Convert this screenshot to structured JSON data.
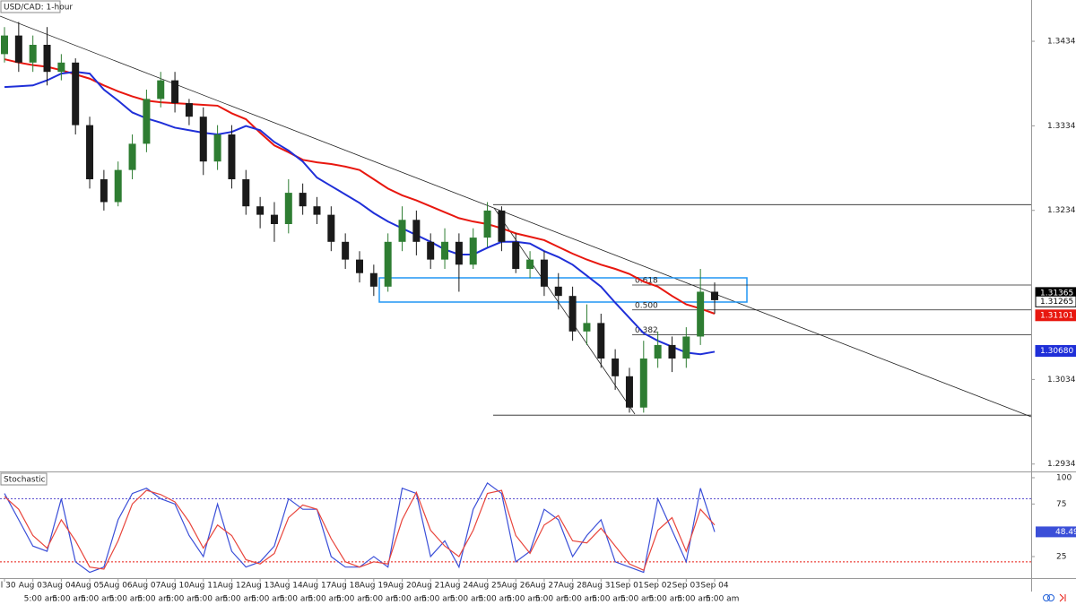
{
  "chart_data": [
    {
      "type": "candlestick",
      "title": "USD/CAD: 1-hour",
      "categories": [
        "Jul 30",
        null,
        "Aug 03",
        null,
        "Aug 04",
        null,
        "Aug 05",
        null,
        "Aug 06",
        null,
        "Aug 07",
        null,
        "Aug 10",
        null,
        "Aug 11",
        null,
        "Aug 12",
        null,
        "Aug 13",
        null,
        "Aug 14",
        null,
        "Aug 17",
        null,
        "Aug 18",
        null,
        "Aug 19",
        null,
        "Aug 20",
        null,
        "Aug 21",
        null,
        "Aug 24",
        null,
        "Aug 25",
        null,
        "Aug 26",
        null,
        "Aug 27",
        null,
        "Aug 28",
        null,
        "Aug 31",
        null,
        "Sep 01",
        null,
        "Sep 02",
        null,
        "Sep 03",
        null,
        "Sep 04"
      ],
      "sublabels": [
        null,
        null,
        "5:00 am",
        null,
        "5:00 am",
        null,
        "5:00 am",
        null,
        "5:00 am",
        null,
        "5:00 am",
        null,
        "5:00 am",
        null,
        "5:00 am",
        null,
        "5:00 am",
        null,
        "5:00 am",
        null,
        "5:00 am",
        null,
        "5:00 am",
        null,
        "5:00 am",
        null,
        "5:00 am",
        null,
        "5:00 am",
        null,
        "5:00 am",
        null,
        "5:00 am",
        null,
        "5:00 am",
        null,
        "5:00 am",
        null,
        "5:00 am",
        null,
        "5:00 am",
        null,
        "5:00 am",
        null,
        "5:00 am",
        null,
        "5:00 am",
        null,
        "5:00 am",
        null,
        "5:00 am"
      ],
      "open": [
        1.3419,
        1.3441,
        1.3409,
        1.343,
        1.3398,
        1.3409,
        1.3335,
        1.3271,
        1.3244,
        1.3282,
        1.3313,
        1.3366,
        1.3388,
        1.3361,
        1.3345,
        1.3292,
        1.3324,
        1.3271,
        1.3239,
        1.3229,
        1.3218,
        1.3255,
        1.3239,
        1.3229,
        1.3197,
        1.3176,
        1.316,
        1.3144,
        1.3197,
        1.3223,
        1.3197,
        1.3176,
        1.3197,
        1.317,
        1.3202,
        1.3234,
        1.3197,
        1.3165,
        1.3176,
        1.3144,
        1.3133,
        1.3091,
        1.3101,
        1.3059,
        1.3038,
        1.3001,
        1.3059,
        1.3075,
        1.3059,
        1.3085,
        1.3138
      ],
      "high": [
        1.3451,
        1.3457,
        1.3441,
        1.3451,
        1.3419,
        1.3414,
        1.3345,
        1.3282,
        1.3292,
        1.3324,
        1.3377,
        1.3398,
        1.3398,
        1.3366,
        1.3356,
        1.3335,
        1.3335,
        1.3282,
        1.325,
        1.3244,
        1.3271,
        1.3266,
        1.325,
        1.3239,
        1.3207,
        1.3186,
        1.317,
        1.3207,
        1.3239,
        1.3234,
        1.3207,
        1.3213,
        1.3207,
        1.3213,
        1.3244,
        1.3239,
        1.3207,
        1.3186,
        1.3186,
        1.316,
        1.3144,
        1.3123,
        1.3112,
        1.307,
        1.3048,
        1.308,
        1.3091,
        1.3085,
        1.3096,
        1.3165,
        1.3149
      ],
      "low": [
        1.3409,
        1.3398,
        1.3398,
        1.3382,
        1.3388,
        1.3324,
        1.326,
        1.3234,
        1.3239,
        1.3271,
        1.3303,
        1.3356,
        1.335,
        1.3335,
        1.3276,
        1.3282,
        1.326,
        1.3229,
        1.3213,
        1.3197,
        1.3207,
        1.3229,
        1.3218,
        1.3186,
        1.3165,
        1.3149,
        1.3133,
        1.3138,
        1.3186,
        1.3181,
        1.3165,
        1.3165,
        1.3138,
        1.3165,
        1.3191,
        1.3186,
        1.316,
        1.3154,
        1.3133,
        1.3117,
        1.308,
        1.3075,
        1.3048,
        1.3022,
        1.2995,
        1.2995,
        1.3048,
        1.3043,
        1.3048,
        1.3075,
        1.3112
      ],
      "close": [
        1.3441,
        1.3409,
        1.343,
        1.3398,
        1.3409,
        1.3335,
        1.3271,
        1.3244,
        1.3282,
        1.3313,
        1.3366,
        1.3388,
        1.3361,
        1.3345,
        1.3292,
        1.3324,
        1.3271,
        1.3239,
        1.3229,
        1.3218,
        1.3255,
        1.3239,
        1.3229,
        1.3197,
        1.3176,
        1.316,
        1.3144,
        1.3197,
        1.3223,
        1.3197,
        1.3176,
        1.3197,
        1.317,
        1.3202,
        1.3234,
        1.3197,
        1.3165,
        1.3176,
        1.3144,
        1.3133,
        1.3091,
        1.3101,
        1.3059,
        1.3038,
        1.3001,
        1.3059,
        1.3075,
        1.3059,
        1.3085,
        1.3138,
        1.3128
      ],
      "up_color": "#2e7d32",
      "down_color": "#1a1a1a",
      "overlays": [
        {
          "color": "#e8170f",
          "values": [
            1.3413,
            1.3409,
            1.3406,
            1.3404,
            1.34,
            1.3395,
            1.339,
            1.3382,
            1.3375,
            1.3369,
            1.3364,
            1.3362,
            1.3361,
            1.336,
            1.3359,
            1.3358,
            1.3349,
            1.3342,
            1.3326,
            1.3311,
            1.3303,
            1.3294,
            1.3291,
            1.3289,
            1.3286,
            1.3282,
            1.3271,
            1.326,
            1.3252,
            1.3246,
            1.3239,
            1.3232,
            1.3225,
            1.3221,
            1.3218,
            1.3213,
            1.3207,
            1.3203,
            1.3199,
            1.3191,
            1.3183,
            1.3176,
            1.317,
            1.3165,
            1.3159,
            1.315,
            1.3144,
            1.3133,
            1.3123,
            1.3118,
            1.3112
          ]
        },
        {
          "color": "#1f2fd8",
          "values": [
            1.338,
            1.3381,
            1.3382,
            1.3388,
            1.3396,
            1.3398,
            1.3396,
            1.3377,
            1.3364,
            1.335,
            1.3343,
            1.3338,
            1.3332,
            1.3329,
            1.3326,
            1.3324,
            1.3327,
            1.3334,
            1.3329,
            1.3315,
            1.3305,
            1.3292,
            1.3273,
            1.3263,
            1.3253,
            1.3243,
            1.3231,
            1.3221,
            1.3213,
            1.3205,
            1.3197,
            1.3188,
            1.3182,
            1.3182,
            1.319,
            1.3197,
            1.3197,
            1.3195,
            1.3186,
            1.3179,
            1.317,
            1.3157,
            1.3144,
            1.3125,
            1.3107,
            1.3089,
            1.308,
            1.3073,
            1.3066,
            1.3064,
            1.3067
          ]
        }
      ],
      "fib": {
        "high": 1.3241,
        "low": 1.2992,
        "levels": [
          0.618,
          {
            "value": 0.5,
            "label": "0.500"
          },
          0.382
        ]
      },
      "price_markers": [
        {
          "value": 1.31365,
          "color": "#000000"
        },
        {
          "value": 1.31265,
          "color": "#ffffff"
        },
        {
          "value": 1.31101,
          "color": "#e8170f"
        },
        {
          "value": {
            "value": 1.3068,
            "label": "1.30680"
          },
          "color": "#1f2fd8"
        }
      ],
      "ylim": [
        1.29265,
        1.3483
      ],
      "yticks": [
        1.29342,
        1.30342,
        1.32342,
        1.33342,
        1.34342
      ]
    },
    {
      "type": "line",
      "title": "Stochastic",
      "series": [
        {
          "color": "#3b4fd8",
          "values": [
            85,
            60,
            35,
            30,
            80,
            20,
            10,
            15,
            60,
            85,
            90,
            80,
            75,
            45,
            25,
            75,
            30,
            15,
            20,
            35,
            80,
            70,
            70,
            25,
            15,
            15,
            25,
            15,
            90,
            85,
            25,
            40,
            15,
            70,
            95,
            85,
            20,
            30,
            70,
            60,
            25,
            45,
            60,
            20,
            15,
            10,
            80,
            50,
            20,
            90,
            48.49
          ]
        },
        {
          "color": "#e8453c",
          "values": [
            82,
            70,
            45,
            33,
            60,
            40,
            15,
            13,
            40,
            75,
            88,
            84,
            77,
            58,
            33,
            55,
            45,
            22,
            18,
            28,
            62,
            74,
            70,
            42,
            20,
            15,
            20,
            18,
            60,
            86,
            50,
            35,
            25,
            50,
            85,
            88,
            45,
            28,
            55,
            64,
            40,
            38,
            52,
            35,
            18,
            12,
            50,
            62,
            30,
            70,
            55
          ]
        }
      ],
      "levels": [
        {
          "value": 80,
          "color": "#5a4fcf"
        },
        {
          "value": 20,
          "color": "#e8170f"
        }
      ],
      "ylim": [
        4.5,
        105.1
      ],
      "yticks": [
        25,
        75,
        100
      ]
    }
  ]
}
